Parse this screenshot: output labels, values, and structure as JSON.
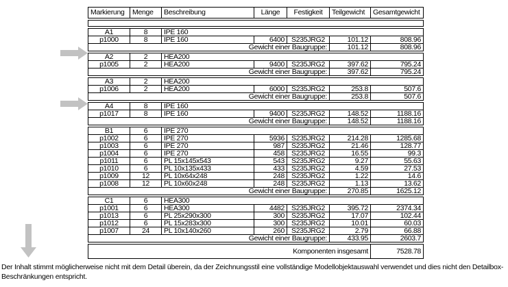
{
  "colors": {
    "arrow": "#c2c2c2",
    "table_border": "#000000",
    "text": "#000000",
    "background": "#ffffff"
  },
  "icons": {
    "arrow_right_1": "arrow-right-icon",
    "arrow_right_2": "arrow-right-icon",
    "arrow_down": "arrow-down-icon"
  },
  "table": {
    "headers": [
      "Markierung",
      "Menge",
      "Beschreibung",
      "Länge",
      "Festigkeit",
      "Teilgewicht",
      "Gesamtgewicht"
    ],
    "assembly_weight_label": "Gewicht einer Baugruppe:",
    "total_label": "Komponenten insgesamt",
    "total_value": "7528.78",
    "groups": [
      {
        "header": {
          "mark": "A1",
          "qty": "8",
          "desc": "IPE 160"
        },
        "parts": [
          {
            "mark": "p1000",
            "qty": "8",
            "desc": "IPE 160",
            "length": "6400",
            "grade": "S235JRG2",
            "part_weight": "101.12",
            "total_weight": "808.96"
          }
        ],
        "assembly_weight": {
          "part_weight": "101.12",
          "total_weight": "808.96"
        }
      },
      {
        "header": {
          "mark": "A2",
          "qty": "2",
          "desc": "HEA200"
        },
        "parts": [
          {
            "mark": "p1005",
            "qty": "2",
            "desc": "HEA200",
            "length": "9400",
            "grade": "S235JRG2",
            "part_weight": "397.62",
            "total_weight": "795.24"
          }
        ],
        "assembly_weight": {
          "part_weight": "397.62",
          "total_weight": "795.24"
        }
      },
      {
        "header": {
          "mark": "A3",
          "qty": "2",
          "desc": "HEA200"
        },
        "parts": [
          {
            "mark": "p1006",
            "qty": "2",
            "desc": "HEA200",
            "length": "6000",
            "grade": "S235JRG2",
            "part_weight": "253.8",
            "total_weight": "507.6"
          }
        ],
        "assembly_weight": {
          "part_weight": "253.8",
          "total_weight": "507.6"
        }
      },
      {
        "header": {
          "mark": "A4",
          "qty": "8",
          "desc": "IPE 160"
        },
        "parts": [
          {
            "mark": "p1017",
            "qty": "8",
            "desc": "IPE 160",
            "length": "9400",
            "grade": "S235JRG2",
            "part_weight": "148.52",
            "total_weight": "1188.16"
          }
        ],
        "assembly_weight": {
          "part_weight": "148.52",
          "total_weight": "1188.16"
        }
      },
      {
        "header": {
          "mark": "B1",
          "qty": "6",
          "desc": "IPE 270"
        },
        "parts": [
          {
            "mark": "p1002",
            "qty": "6",
            "desc": "IPE 270",
            "length": "5936",
            "grade": "S235JRG2",
            "part_weight": "214.28",
            "total_weight": "1285.68"
          },
          {
            "mark": "p1003",
            "qty": "6",
            "desc": "IPE 270",
            "length": "987",
            "grade": "S235JRG2",
            "part_weight": "21.46",
            "total_weight": "128.77"
          },
          {
            "mark": "p1004",
            "qty": "6",
            "desc": "IPE 270",
            "length": "458",
            "grade": "S235JRG2",
            "part_weight": "16.55",
            "total_weight": "99.3"
          },
          {
            "mark": "p1011",
            "qty": "6",
            "desc": "PL 15x145x543",
            "length": "543",
            "grade": "S235JRG2",
            "part_weight": "9.27",
            "total_weight": "55.63"
          },
          {
            "mark": "p1010",
            "qty": "6",
            "desc": "PL 10x135x433",
            "length": "433",
            "grade": "S235JRG2",
            "part_weight": "4.59",
            "total_weight": "27.53"
          },
          {
            "mark": "p1009",
            "qty": "12",
            "desc": "PL 10x64x248",
            "length": "248",
            "grade": "S235JRG2",
            "part_weight": "1.22",
            "total_weight": "14.6"
          },
          {
            "mark": "p1008",
            "qty": "12",
            "desc": "PL 10x60x248",
            "length": "248",
            "grade": "S235JRG2",
            "part_weight": "1.13",
            "total_weight": "13.62"
          }
        ],
        "assembly_weight": {
          "part_weight": "270.85",
          "total_weight": "1625.12"
        }
      },
      {
        "header": {
          "mark": "C1",
          "qty": "6",
          "desc": "HEA300"
        },
        "parts": [
          {
            "mark": "p1001",
            "qty": "6",
            "desc": "HEA300",
            "length": "4482",
            "grade": "S235JRG2",
            "part_weight": "395.72",
            "total_weight": "2374.34"
          },
          {
            "mark": "p1013",
            "qty": "6",
            "desc": "PL 25x290x300",
            "length": "300",
            "grade": "S235JRG2",
            "part_weight": "17.07",
            "total_weight": "102.44"
          },
          {
            "mark": "p1012",
            "qty": "6",
            "desc": "PL 15x283x300",
            "length": "300",
            "grade": "S235JRG2",
            "part_weight": "10.01",
            "total_weight": "60.03"
          },
          {
            "mark": "p1007",
            "qty": "24",
            "desc": "PL 10x140x260",
            "length": "260",
            "grade": "S235JRG2",
            "part_weight": "2.79",
            "total_weight": "66.88"
          }
        ],
        "assembly_weight": {
          "part_weight": "433.95",
          "total_weight": "2603.7"
        }
      }
    ]
  },
  "footer_note": "Der Inhalt stimmt möglicherweise nicht mit dem Detail überein, da der Zeichnungsstil eine vollständige Modellobjektauswahl verwendet und dies nicht den Detailbox-Beschränkungen entspricht."
}
